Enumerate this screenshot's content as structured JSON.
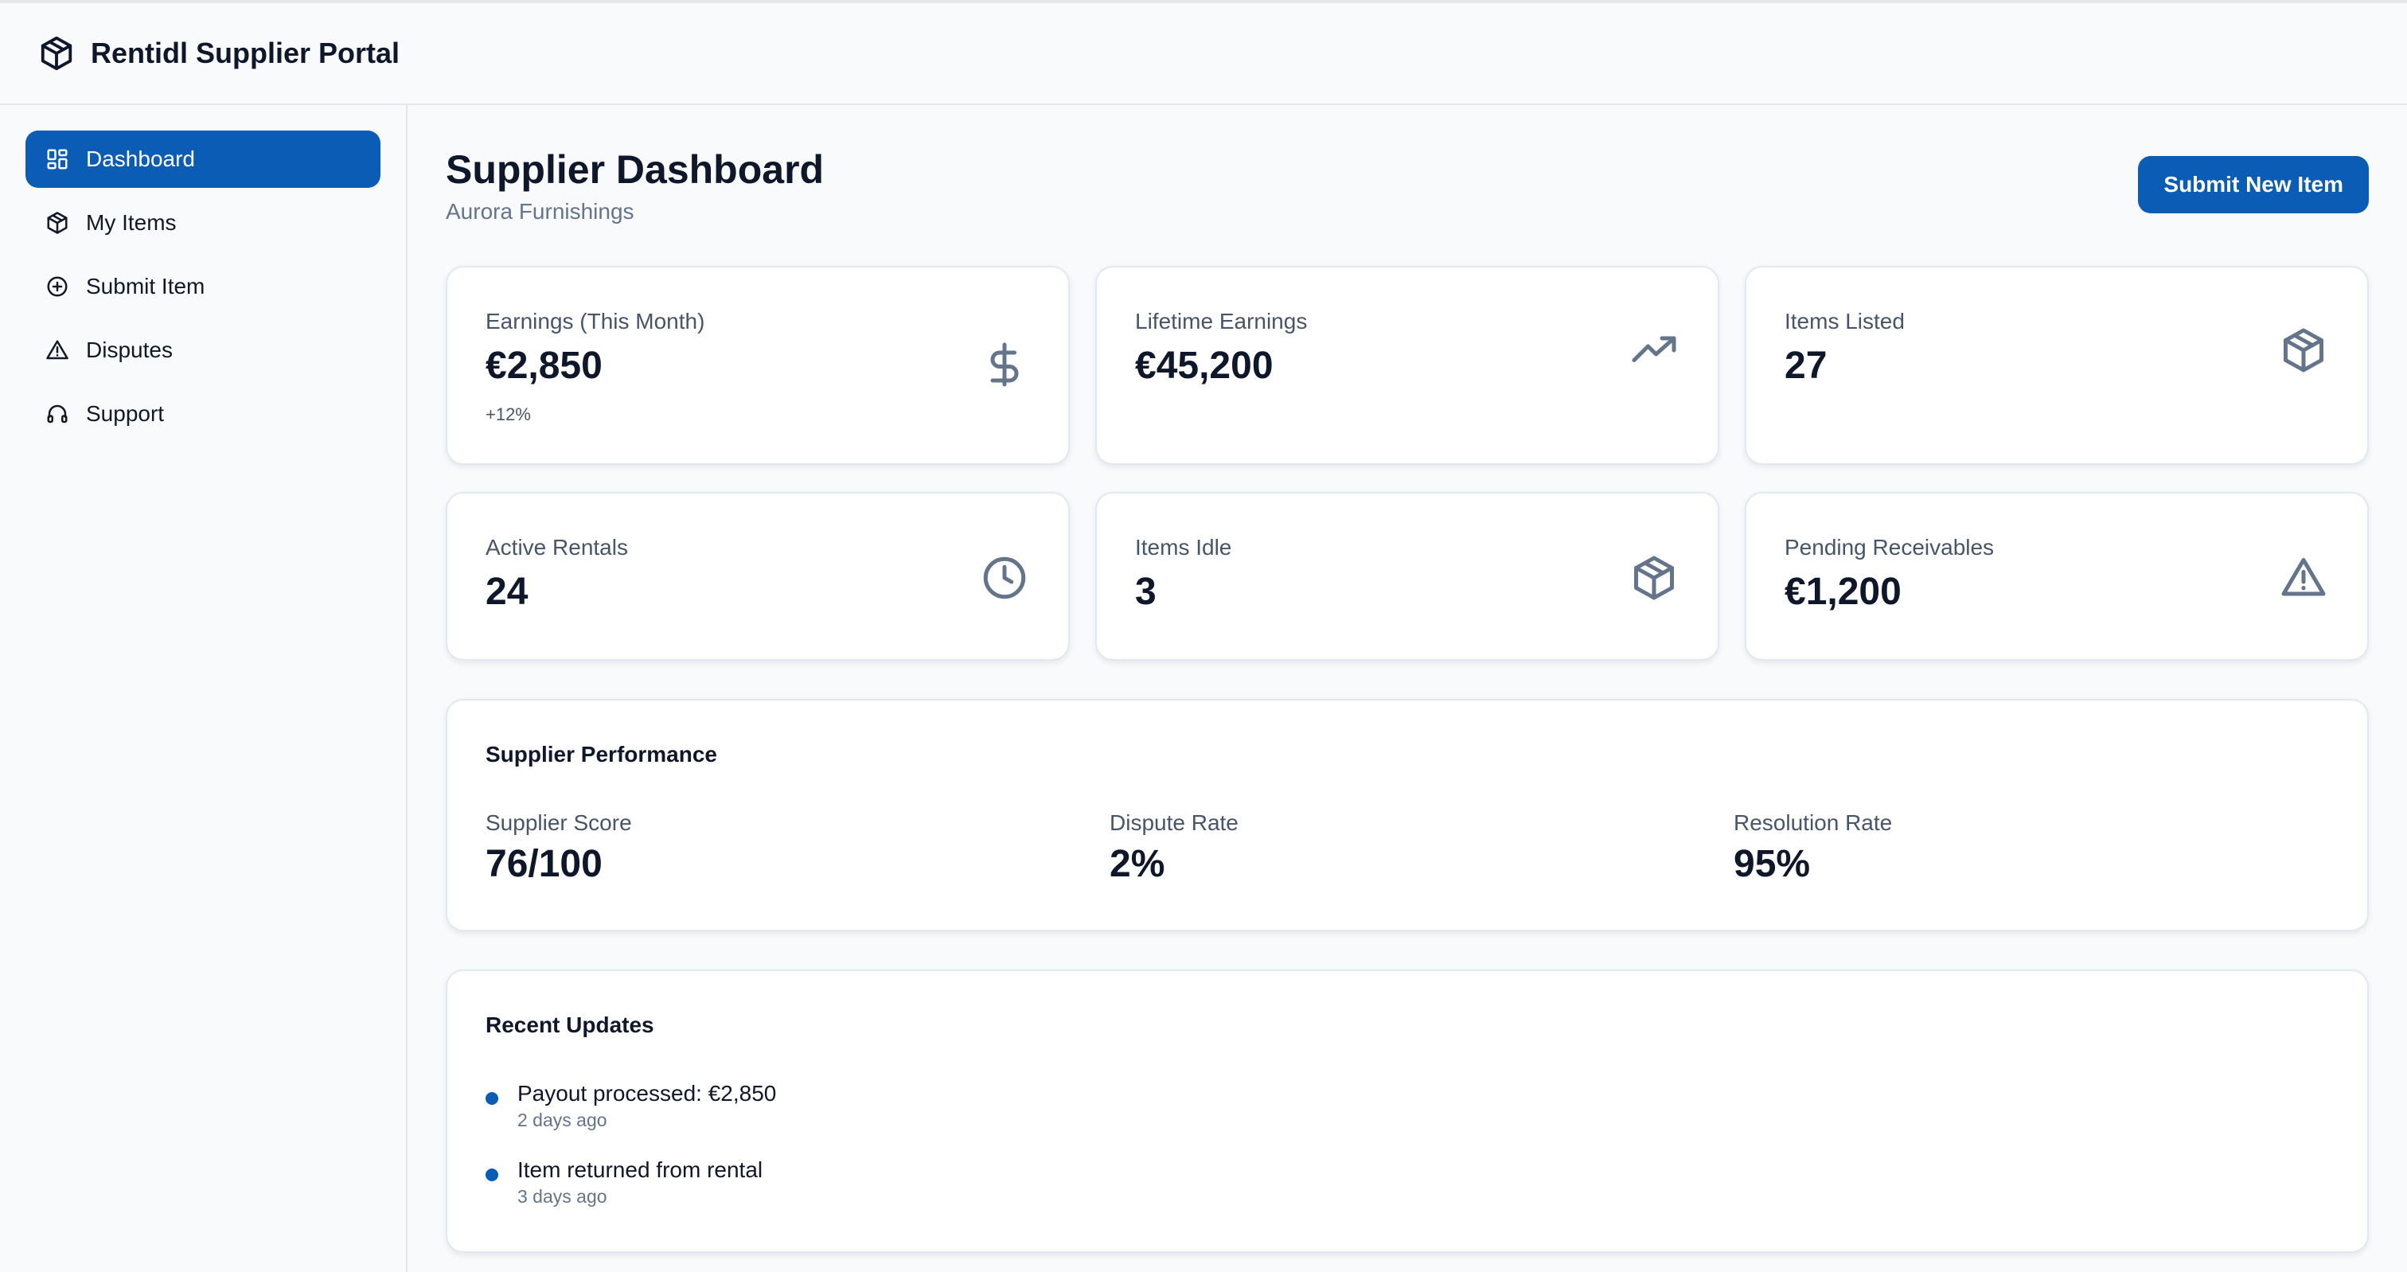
{
  "app": {
    "title": "Rentidl Supplier Portal"
  },
  "sidebar": {
    "items": [
      {
        "label": "Dashboard",
        "icon": "dashboard-icon",
        "active": true
      },
      {
        "label": "My Items",
        "icon": "box-icon"
      },
      {
        "label": "Submit Item",
        "icon": "plus-circle-icon"
      },
      {
        "label": "Disputes",
        "icon": "alert-triangle-icon"
      },
      {
        "label": "Support",
        "icon": "headphones-icon"
      }
    ]
  },
  "header": {
    "title": "Supplier Dashboard",
    "subtitle": "Aurora Furnishings",
    "submit_button": "Submit New Item"
  },
  "stats": [
    {
      "label": "Earnings (This Month)",
      "value": "€2,850",
      "delta": "+12%",
      "icon": "dollar-icon"
    },
    {
      "label": "Lifetime Earnings",
      "value": "€45,200",
      "icon": "trending-up-icon"
    },
    {
      "label": "Items Listed",
      "value": "27",
      "icon": "box-icon"
    },
    {
      "label": "Active Rentals",
      "value": "24",
      "icon": "clock-icon"
    },
    {
      "label": "Items Idle",
      "value": "3",
      "icon": "box-icon"
    },
    {
      "label": "Pending Receivables",
      "value": "€1,200",
      "icon": "alert-triangle-icon"
    }
  ],
  "performance": {
    "title": "Supplier Performance",
    "metrics": [
      {
        "label": "Supplier Score",
        "value": "76/100"
      },
      {
        "label": "Dispute Rate",
        "value": "2%"
      },
      {
        "label": "Resolution Rate",
        "value": "95%"
      }
    ]
  },
  "updates": {
    "title": "Recent Updates",
    "items": [
      {
        "title": "Payout processed: €2,850",
        "time": "2 days ago"
      },
      {
        "title": "Item returned from rental",
        "time": "3 days ago"
      }
    ]
  },
  "colors": {
    "accent": "#0b5cb4",
    "icon_gray": "#64748b",
    "border": "#e2e8f0",
    "background": "#f8fafc"
  }
}
